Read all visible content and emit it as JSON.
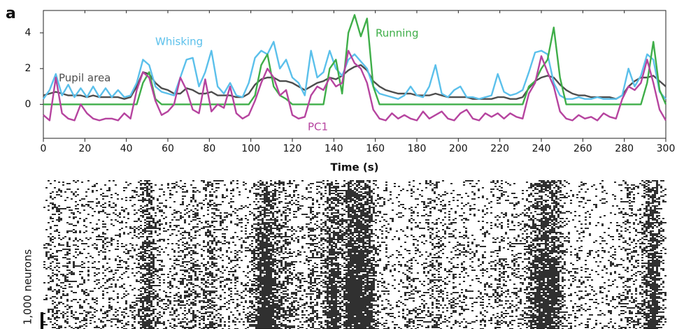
{
  "panel_label": "a",
  "raster_label": "1,000 neurons",
  "chart_data": {
    "type": "line",
    "xlabel": "Time (s)",
    "x": [
      0,
      3,
      6,
      9,
      12,
      15,
      18,
      21,
      24,
      27,
      30,
      33,
      36,
      39,
      42,
      45,
      48,
      51,
      54,
      57,
      60,
      63,
      66,
      69,
      72,
      75,
      78,
      81,
      84,
      87,
      90,
      93,
      96,
      99,
      102,
      105,
      108,
      111,
      114,
      117,
      120,
      123,
      126,
      129,
      132,
      135,
      138,
      141,
      144,
      147,
      150,
      153,
      156,
      159,
      162,
      165,
      168,
      171,
      174,
      177,
      180,
      183,
      186,
      189,
      192,
      195,
      198,
      201,
      204,
      207,
      210,
      213,
      216,
      219,
      222,
      225,
      228,
      231,
      234,
      237,
      240,
      243,
      246,
      249,
      252,
      255,
      258,
      261,
      264,
      267,
      270,
      273,
      276,
      279,
      282,
      285,
      288,
      291,
      294,
      297,
      300
    ],
    "xlim": [
      0,
      300
    ],
    "xticks": [
      0,
      20,
      40,
      60,
      80,
      100,
      120,
      140,
      160,
      180,
      200,
      220,
      240,
      260,
      280,
      300
    ],
    "ylim": [
      -1.9,
      5.25
    ],
    "yticks": [
      0,
      2,
      4
    ],
    "series": [
      {
        "name": "Pupil area",
        "color": "#4d4d4d",
        "values": [
          0.5,
          0.6,
          0.7,
          0.6,
          0.5,
          0.5,
          0.5,
          0.4,
          0.5,
          0.4,
          0.4,
          0.4,
          0.4,
          0.3,
          0.4,
          1.0,
          1.8,
          1.7,
          1.2,
          0.9,
          0.8,
          0.6,
          0.6,
          0.9,
          0.8,
          0.6,
          0.6,
          0.7,
          0.5,
          0.5,
          0.5,
          0.4,
          0.4,
          0.6,
          1.1,
          1.4,
          1.5,
          1.5,
          1.3,
          1.3,
          1.2,
          1.0,
          0.8,
          1.0,
          1.2,
          1.3,
          1.5,
          1.4,
          1.6,
          1.9,
          2.1,
          2.2,
          1.9,
          1.3,
          1.0,
          0.8,
          0.7,
          0.6,
          0.6,
          0.6,
          0.5,
          0.5,
          0.5,
          0.6,
          0.5,
          0.4,
          0.4,
          0.4,
          0.4,
          0.3,
          0.3,
          0.3,
          0.3,
          0.4,
          0.4,
          0.3,
          0.3,
          0.4,
          0.9,
          1.3,
          1.5,
          1.6,
          1.5,
          1.1,
          0.8,
          0.6,
          0.5,
          0.5,
          0.4,
          0.4,
          0.4,
          0.4,
          0.3,
          0.5,
          1.0,
          1.3,
          1.5,
          1.5,
          1.6,
          1.3,
          1.0
        ]
      },
      {
        "name": "Whisking",
        "color": "#5bc0eb",
        "values": [
          0.3,
          0.8,
          1.7,
          0.5,
          1.1,
          0.4,
          0.9,
          0.4,
          1.0,
          0.4,
          0.9,
          0.4,
          0.8,
          0.4,
          0.5,
          1.2,
          2.5,
          2.2,
          1.0,
          0.7,
          0.6,
          0.5,
          1.5,
          2.5,
          2.6,
          1.0,
          1.8,
          3.0,
          1.0,
          0.6,
          1.2,
          0.5,
          0.4,
          1.2,
          2.6,
          3.0,
          2.8,
          3.5,
          2.0,
          2.5,
          1.5,
          1.2,
          0.5,
          3.0,
          1.5,
          1.8,
          3.0,
          2.0,
          1.6,
          2.5,
          2.8,
          2.4,
          2.0,
          1.0,
          0.6,
          0.5,
          0.4,
          0.3,
          0.5,
          1.0,
          0.5,
          0.4,
          1.0,
          2.2,
          0.6,
          0.4,
          0.8,
          1.0,
          0.4,
          0.4,
          0.3,
          0.4,
          0.5,
          1.7,
          0.7,
          0.5,
          0.6,
          0.8,
          1.8,
          2.9,
          3.0,
          2.8,
          1.2,
          0.5,
          0.3,
          0.3,
          0.4,
          0.3,
          0.3,
          0.4,
          0.3,
          0.3,
          0.3,
          0.5,
          2.0,
          1.0,
          1.6,
          2.8,
          2.5,
          0.7,
          0.3
        ]
      },
      {
        "name": "Running",
        "color": "#3fae49",
        "values": [
          0,
          0,
          0,
          0,
          0,
          0,
          0,
          0,
          0,
          0,
          0,
          0,
          0,
          0,
          0,
          0,
          1.2,
          1.8,
          0.3,
          0,
          0,
          0,
          0,
          0,
          0,
          0,
          0,
          0,
          0,
          0,
          0,
          0,
          0,
          0,
          0.5,
          2.2,
          2.8,
          1.0,
          0.5,
          0.3,
          0,
          0,
          0,
          0,
          0,
          0,
          2.0,
          2.5,
          0.6,
          4.0,
          5.0,
          3.8,
          4.8,
          1.0,
          0,
          0,
          0,
          0,
          0,
          0,
          0,
          0,
          0,
          0,
          0,
          0,
          0,
          0,
          0,
          0,
          0,
          0,
          0,
          0,
          0,
          0,
          0,
          0,
          1.0,
          1.3,
          2.0,
          2.5,
          4.3,
          1.5,
          0,
          0,
          0,
          0,
          0,
          0,
          0,
          0,
          0,
          0,
          0,
          0,
          0,
          1.2,
          3.5,
          0.8,
          0
        ]
      },
      {
        "name": "PC1",
        "color": "#b6449f",
        "values": [
          -0.6,
          -0.9,
          1.5,
          -0.5,
          -0.8,
          -0.9,
          0,
          -0.5,
          -0.8,
          -0.9,
          -0.8,
          -0.8,
          -0.9,
          -0.5,
          -0.8,
          0.8,
          1.8,
          1.5,
          0.2,
          -0.6,
          -0.4,
          0,
          1.5,
          0.8,
          -0.3,
          -0.5,
          1.4,
          -0.4,
          0,
          -0.2,
          1.0,
          -0.5,
          -0.8,
          -0.6,
          0.2,
          1.2,
          2.0,
          1.5,
          0.5,
          0.8,
          -0.6,
          -0.8,
          -0.7,
          0.5,
          1.0,
          0.8,
          1.5,
          1.0,
          1.2,
          3.0,
          2.3,
          2.0,
          1.2,
          -0.3,
          -0.8,
          -0.9,
          -0.5,
          -0.8,
          -0.6,
          -0.8,
          -0.9,
          -0.4,
          -0.8,
          -0.6,
          -0.4,
          -0.8,
          -0.9,
          -0.5,
          -0.3,
          -0.8,
          -0.9,
          -0.5,
          -0.7,
          -0.5,
          -0.8,
          -0.5,
          -0.7,
          -0.8,
          0.6,
          1.2,
          2.7,
          1.8,
          1.0,
          -0.4,
          -0.8,
          -0.9,
          -0.6,
          -0.8,
          -0.7,
          -0.9,
          -0.5,
          -0.7,
          -0.8,
          0.3,
          1.0,
          0.8,
          1.2,
          2.5,
          1.2,
          -0.3,
          -0.9
        ]
      }
    ]
  }
}
